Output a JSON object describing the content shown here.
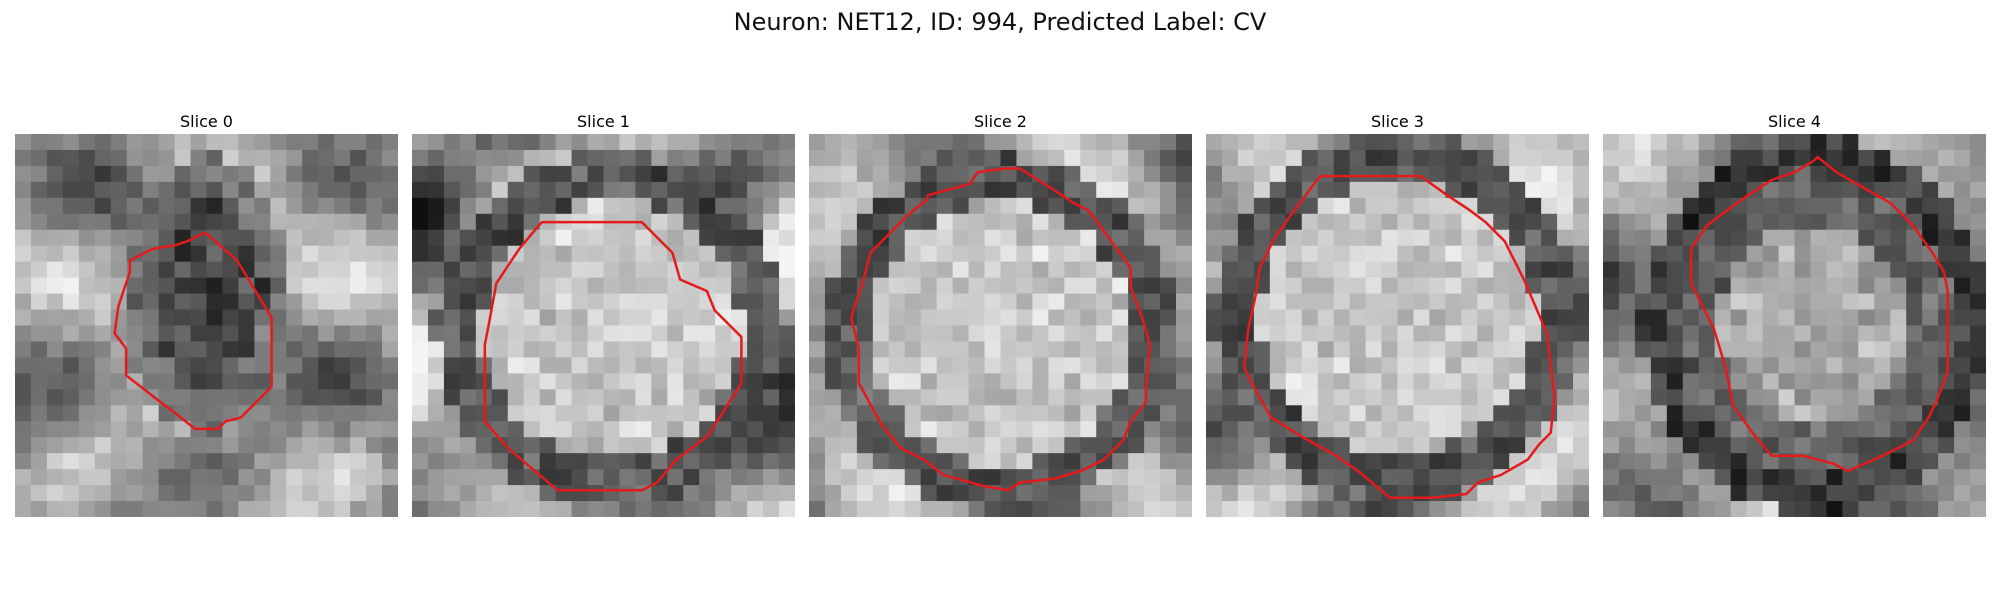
{
  "figure": {
    "title": "Neuron: NET12, ID: 994, Predicted Label: CV"
  },
  "colors": {
    "contour": "#e41a1c"
  },
  "panels": [
    {
      "title": "Slice 0",
      "center": [
        0.5,
        0.42
      ],
      "radius": [
        0.2,
        0.33
      ],
      "core": "dark",
      "contour": [
        [
          0.5,
          0.26
        ],
        [
          0.58,
          0.33
        ],
        [
          0.64,
          0.43
        ],
        [
          0.67,
          0.48
        ],
        [
          0.67,
          0.66
        ],
        [
          0.59,
          0.74
        ],
        [
          0.55,
          0.75
        ],
        [
          0.53,
          0.77
        ],
        [
          0.47,
          0.77
        ],
        [
          0.42,
          0.73
        ],
        [
          0.38,
          0.7
        ],
        [
          0.29,
          0.63
        ],
        [
          0.29,
          0.56
        ],
        [
          0.26,
          0.52
        ],
        [
          0.27,
          0.45
        ],
        [
          0.3,
          0.36
        ],
        [
          0.3,
          0.33
        ],
        [
          0.36,
          0.3
        ],
        [
          0.42,
          0.29
        ],
        [
          0.45,
          0.28
        ],
        [
          0.49,
          0.26
        ]
      ]
    },
    {
      "title": "Slice 1",
      "center": [
        0.52,
        0.51
      ],
      "radius": [
        0.4,
        0.4
      ],
      "core": "bright",
      "contour": [
        [
          0.34,
          0.23
        ],
        [
          0.6,
          0.23
        ],
        [
          0.68,
          0.31
        ],
        [
          0.7,
          0.38
        ],
        [
          0.77,
          0.41
        ],
        [
          0.79,
          0.46
        ],
        [
          0.86,
          0.53
        ],
        [
          0.86,
          0.65
        ],
        [
          0.81,
          0.73
        ],
        [
          0.77,
          0.79
        ],
        [
          0.69,
          0.85
        ],
        [
          0.64,
          0.91
        ],
        [
          0.6,
          0.93
        ],
        [
          0.53,
          0.93
        ],
        [
          0.38,
          0.93
        ],
        [
          0.25,
          0.82
        ],
        [
          0.19,
          0.75
        ],
        [
          0.19,
          0.55
        ],
        [
          0.2,
          0.5
        ],
        [
          0.22,
          0.39
        ],
        [
          0.28,
          0.3
        ],
        [
          0.33,
          0.24
        ]
      ]
    },
    {
      "title": "Slice 2",
      "center": [
        0.5,
        0.52
      ],
      "radius": [
        0.4,
        0.4
      ],
      "core": "bright",
      "contour": [
        [
          0.31,
          0.16
        ],
        [
          0.42,
          0.13
        ],
        [
          0.44,
          0.1
        ],
        [
          0.51,
          0.09
        ],
        [
          0.55,
          0.09
        ],
        [
          0.63,
          0.14
        ],
        [
          0.69,
          0.18
        ],
        [
          0.73,
          0.2
        ],
        [
          0.76,
          0.24
        ],
        [
          0.84,
          0.35
        ],
        [
          0.84,
          0.4
        ],
        [
          0.87,
          0.48
        ],
        [
          0.89,
          0.55
        ],
        [
          0.88,
          0.66
        ],
        [
          0.88,
          0.7
        ],
        [
          0.84,
          0.75
        ],
        [
          0.82,
          0.8
        ],
        [
          0.77,
          0.85
        ],
        [
          0.71,
          0.88
        ],
        [
          0.64,
          0.9
        ],
        [
          0.55,
          0.91
        ],
        [
          0.52,
          0.93
        ],
        [
          0.46,
          0.92
        ],
        [
          0.35,
          0.89
        ],
        [
          0.3,
          0.85
        ],
        [
          0.24,
          0.82
        ],
        [
          0.19,
          0.76
        ],
        [
          0.13,
          0.65
        ],
        [
          0.13,
          0.56
        ],
        [
          0.11,
          0.48
        ],
        [
          0.14,
          0.39
        ],
        [
          0.16,
          0.31
        ],
        [
          0.22,
          0.25
        ],
        [
          0.26,
          0.21
        ],
        [
          0.31,
          0.17
        ]
      ]
    },
    {
      "title": "Slice 3",
      "center": [
        0.5,
        0.48
      ],
      "radius": [
        0.42,
        0.42
      ],
      "core": "bright",
      "contour": [
        [
          0.3,
          0.11
        ],
        [
          0.51,
          0.11
        ],
        [
          0.56,
          0.11
        ],
        [
          0.63,
          0.16
        ],
        [
          0.69,
          0.2
        ],
        [
          0.73,
          0.23
        ],
        [
          0.78,
          0.28
        ],
        [
          0.83,
          0.38
        ],
        [
          0.86,
          0.45
        ],
        [
          0.89,
          0.52
        ],
        [
          0.9,
          0.6
        ],
        [
          0.91,
          0.69
        ],
        [
          0.9,
          0.78
        ],
        [
          0.87,
          0.81
        ],
        [
          0.84,
          0.85
        ],
        [
          0.77,
          0.89
        ],
        [
          0.71,
          0.91
        ],
        [
          0.68,
          0.94
        ],
        [
          0.59,
          0.95
        ],
        [
          0.48,
          0.95
        ],
        [
          0.41,
          0.89
        ],
        [
          0.34,
          0.84
        ],
        [
          0.25,
          0.79
        ],
        [
          0.17,
          0.74
        ],
        [
          0.13,
          0.67
        ],
        [
          0.1,
          0.61
        ],
        [
          0.11,
          0.51
        ],
        [
          0.13,
          0.42
        ],
        [
          0.14,
          0.35
        ],
        [
          0.18,
          0.27
        ],
        [
          0.23,
          0.2
        ],
        [
          0.29,
          0.12
        ]
      ]
    },
    {
      "title": "Slice 4",
      "center": [
        0.55,
        0.5
      ],
      "radius": [
        0.35,
        0.38
      ],
      "core": "mid",
      "contour": [
        [
          0.56,
          0.06
        ],
        [
          0.61,
          0.1
        ],
        [
          0.68,
          0.14
        ],
        [
          0.75,
          0.18
        ],
        [
          0.81,
          0.24
        ],
        [
          0.86,
          0.31
        ],
        [
          0.89,
          0.36
        ],
        [
          0.9,
          0.41
        ],
        [
          0.9,
          0.51
        ],
        [
          0.9,
          0.62
        ],
        [
          0.87,
          0.7
        ],
        [
          0.85,
          0.74
        ],
        [
          0.81,
          0.8
        ],
        [
          0.73,
          0.84
        ],
        [
          0.64,
          0.88
        ],
        [
          0.6,
          0.86
        ],
        [
          0.52,
          0.84
        ],
        [
          0.44,
          0.84
        ],
        [
          0.39,
          0.78
        ],
        [
          0.34,
          0.71
        ],
        [
          0.32,
          0.61
        ],
        [
          0.29,
          0.51
        ],
        [
          0.23,
          0.39
        ],
        [
          0.23,
          0.3
        ],
        [
          0.27,
          0.24
        ],
        [
          0.35,
          0.18
        ],
        [
          0.44,
          0.12
        ],
        [
          0.5,
          0.1
        ],
        [
          0.55,
          0.07
        ]
      ]
    }
  ]
}
